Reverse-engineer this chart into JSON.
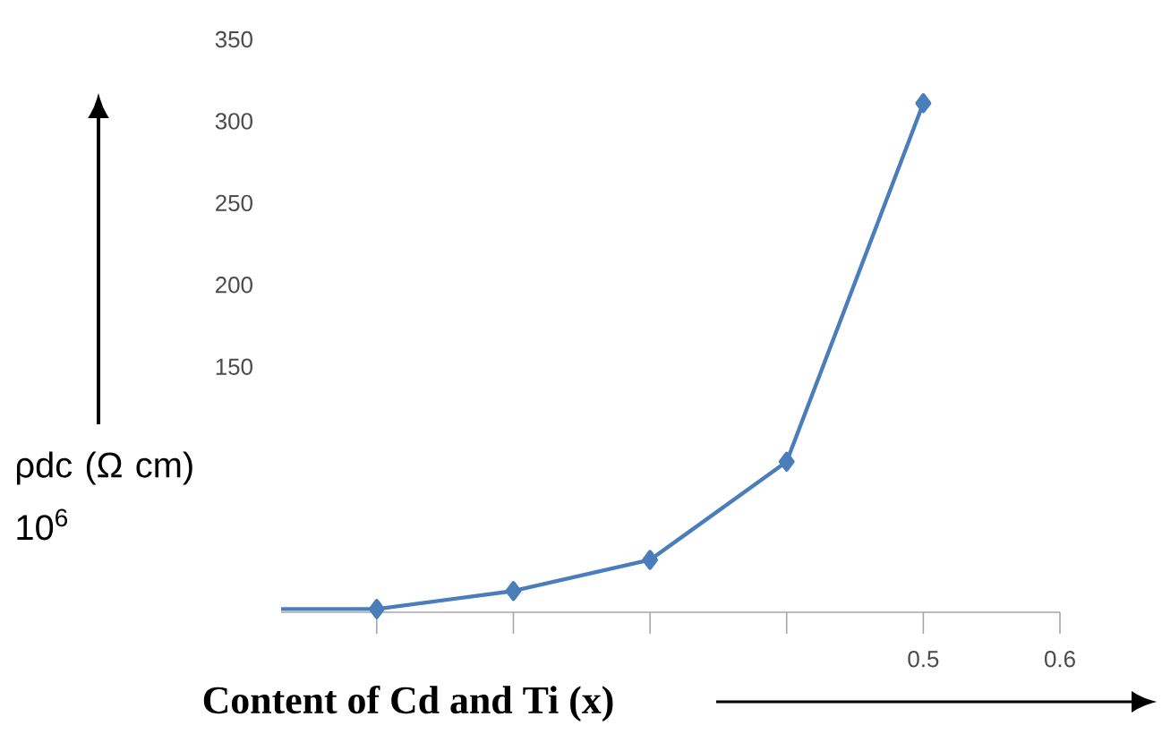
{
  "chart_data": {
    "type": "line",
    "xlabel": "Content of Cd and Ti  (x)",
    "ylabel": "ρdc  (Ω cm) 10$^{6}$",
    "xlim": [
      0.03,
      0.6
    ],
    "ylim": [
      0,
      350
    ],
    "xticks": [
      {
        "value": 0.1,
        "label": null
      },
      {
        "value": 0.2,
        "label": null
      },
      {
        "value": 0.3,
        "label": null
      },
      {
        "value": 0.4,
        "label": null
      },
      0.5,
      0.6
    ],
    "yticks": [
      150,
      200,
      250,
      300,
      350
    ],
    "tick_labels": "xy",
    "grid": false,
    "marker": "diamond",
    "line_style": "solid",
    "series": [
      {
        "color": "#4a7ebb",
        "x": [
          0.1,
          0.2,
          0.3,
          0.4,
          0.5
        ],
        "values": [
          2,
          13,
          32,
          92,
          311
        ]
      },
      {
        "color": "#4a7ebb",
        "marker": "none",
        "x": [
          0.03,
          0.1
        ],
        "values": [
          2,
          2
        ]
      }
    ]
  }
}
